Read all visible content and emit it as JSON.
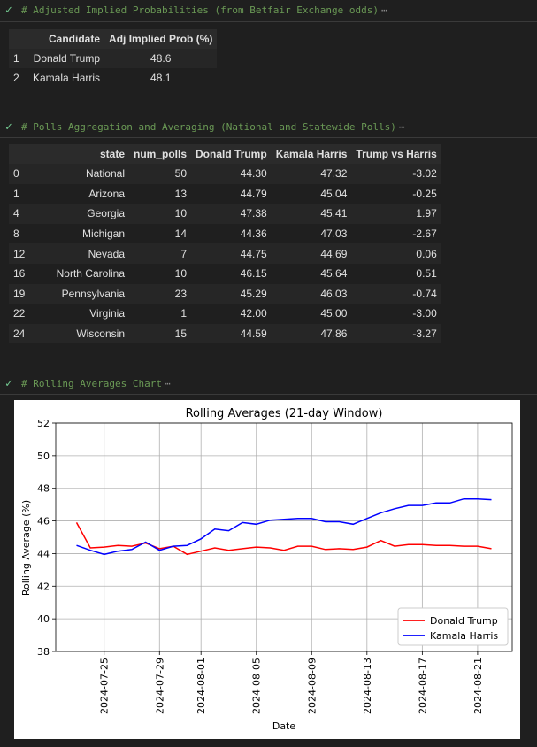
{
  "cell1": {
    "code": "# Adjusted Implied Probabilities (from Betfair Exchange odds)",
    "ellipsis": "⋯"
  },
  "table1": {
    "columns": [
      "",
      "Candidate",
      "Adj Implied Prob (%)"
    ],
    "rows": [
      [
        "1",
        "Donald Trump",
        "48.6"
      ],
      [
        "2",
        "Kamala Harris",
        "48.1"
      ]
    ]
  },
  "cell2": {
    "code": "# Polls Aggregation and Averaging (National and Statewide Polls)",
    "ellipsis": "⋯"
  },
  "table2": {
    "columns": [
      "",
      "state",
      "num_polls",
      "Donald Trump",
      "Kamala Harris",
      "Trump vs Harris"
    ],
    "rows": [
      [
        "0",
        "National",
        "50",
        "44.30",
        "47.32",
        "-3.02"
      ],
      [
        "1",
        "Arizona",
        "13",
        "44.79",
        "45.04",
        "-0.25"
      ],
      [
        "4",
        "Georgia",
        "10",
        "47.38",
        "45.41",
        "1.97"
      ],
      [
        "8",
        "Michigan",
        "14",
        "44.36",
        "47.03",
        "-2.67"
      ],
      [
        "12",
        "Nevada",
        "7",
        "44.75",
        "44.69",
        "0.06"
      ],
      [
        "16",
        "North Carolina",
        "10",
        "46.15",
        "45.64",
        "0.51"
      ],
      [
        "19",
        "Pennsylvania",
        "23",
        "45.29",
        "46.03",
        "-0.74"
      ],
      [
        "22",
        "Virginia",
        "1",
        "42.00",
        "45.00",
        "-3.00"
      ],
      [
        "24",
        "Wisconsin",
        "15",
        "44.59",
        "47.86",
        "-3.27"
      ]
    ]
  },
  "cell3": {
    "code": "# Rolling Averages Chart",
    "ellipsis": "⋯"
  },
  "chart_data": {
    "type": "line",
    "title": "Rolling Averages (21-day Window)",
    "xlabel": "Date",
    "ylabel": "Rolling Average (%)",
    "ylim": [
      38,
      52
    ],
    "yticks": [
      38,
      40,
      42,
      44,
      46,
      48,
      50,
      52
    ],
    "xticks": [
      "2024-07-25",
      "2024-07-29",
      "2024-08-01",
      "2024-08-05",
      "2024-08-09",
      "2024-08-13",
      "2024-08-17",
      "2024-08-21"
    ],
    "grid": true,
    "legend_position": "lower right",
    "x": [
      "2024-07-23",
      "2024-07-24",
      "2024-07-25",
      "2024-07-26",
      "2024-07-27",
      "2024-07-28",
      "2024-07-29",
      "2024-07-30",
      "2024-07-31",
      "2024-08-01",
      "2024-08-02",
      "2024-08-03",
      "2024-08-04",
      "2024-08-05",
      "2024-08-06",
      "2024-08-07",
      "2024-08-08",
      "2024-08-09",
      "2024-08-10",
      "2024-08-11",
      "2024-08-12",
      "2024-08-13",
      "2024-08-14",
      "2024-08-15",
      "2024-08-16",
      "2024-08-17",
      "2024-08-18",
      "2024-08-19",
      "2024-08-20",
      "2024-08-21",
      "2024-08-22"
    ],
    "series": [
      {
        "name": "Donald Trump",
        "color": "#ff0000",
        "values": [
          45.9,
          44.35,
          44.4,
          44.5,
          44.45,
          44.65,
          44.3,
          44.45,
          43.95,
          44.15,
          44.35,
          44.2,
          44.3,
          44.4,
          44.35,
          44.2,
          44.45,
          44.45,
          44.25,
          44.3,
          44.25,
          44.4,
          44.8,
          44.45,
          44.55,
          44.55,
          44.5,
          44.5,
          44.45,
          44.45,
          44.3
        ]
      },
      {
        "name": "Kamala Harris",
        "color": "#0000ff",
        "values": [
          44.5,
          44.2,
          43.95,
          44.15,
          44.25,
          44.7,
          44.2,
          44.45,
          44.5,
          44.9,
          45.5,
          45.4,
          45.9,
          45.8,
          46.05,
          46.1,
          46.15,
          46.15,
          45.95,
          45.95,
          45.8,
          46.15,
          46.5,
          46.75,
          46.95,
          46.95,
          47.1,
          47.1,
          47.35,
          47.35,
          47.3
        ]
      }
    ]
  }
}
